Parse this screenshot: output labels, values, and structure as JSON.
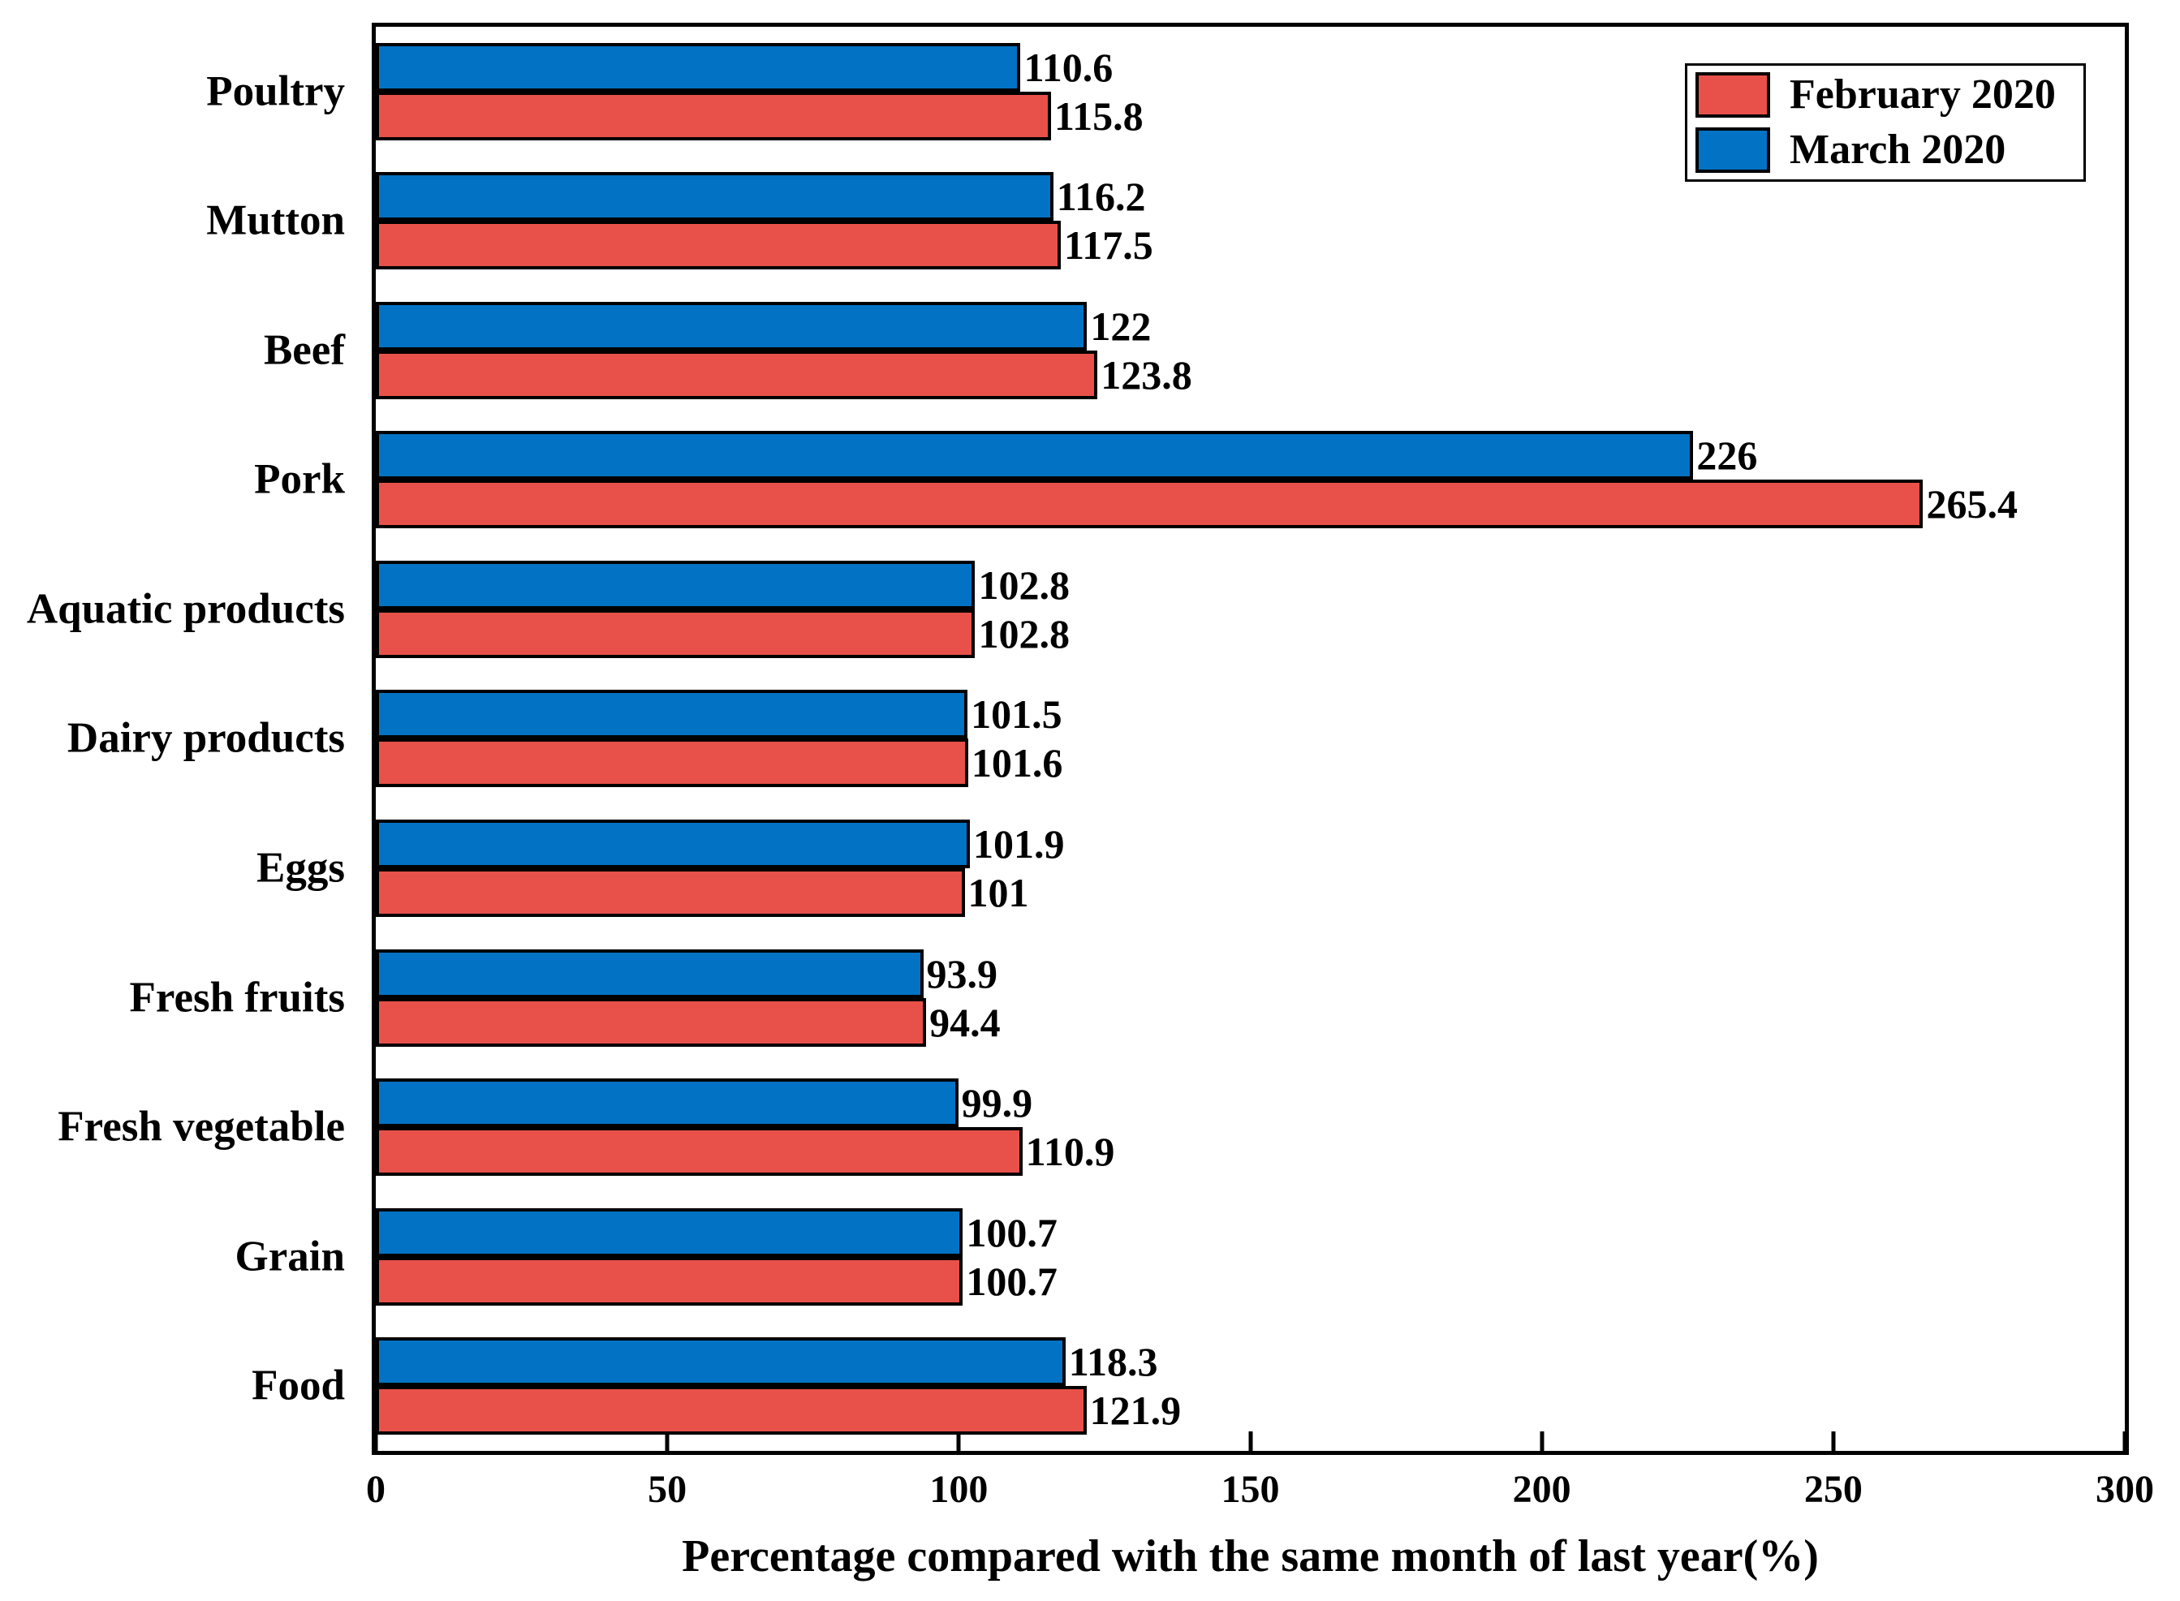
{
  "chart_data": {
    "type": "bar",
    "orientation": "horizontal",
    "title": "",
    "xlabel": "Percentage compared with the same month of last year(%)",
    "ylabel": "",
    "xlim": [
      0,
      300
    ],
    "xticks": [
      0,
      50,
      100,
      150,
      200,
      250,
      300
    ],
    "grid": false,
    "legend_position": "top-right",
    "value_labels": true,
    "categories_top_to_bottom": [
      "Poultry",
      "Mutton",
      "Beef",
      "Pork",
      "Aquatic products",
      "Dairy products",
      "Eggs",
      "Fresh fruits",
      "Fresh vegetable",
      "Grain",
      "Food"
    ],
    "series": [
      {
        "name": "February 2020",
        "color": "#E85149",
        "values": [
          115.8,
          117.5,
          123.8,
          265.4,
          102.8,
          101.6,
          101,
          94.4,
          110.9,
          100.7,
          121.9
        ]
      },
      {
        "name": "March 2020",
        "color": "#0273C4",
        "values": [
          110.6,
          116.2,
          122,
          226,
          102.8,
          101.5,
          101.9,
          93.9,
          99.9,
          100.7,
          118.3
        ]
      }
    ],
    "bar_order_top_to_bottom_within_group": [
      "March 2020",
      "February 2020"
    ],
    "bar_border_color": "#000000",
    "axis_color": "#000000"
  },
  "legend": {
    "items": [
      {
        "label": "February 2020",
        "color": "#E85149"
      },
      {
        "label": "March 2020",
        "color": "#0273C4"
      }
    ]
  }
}
